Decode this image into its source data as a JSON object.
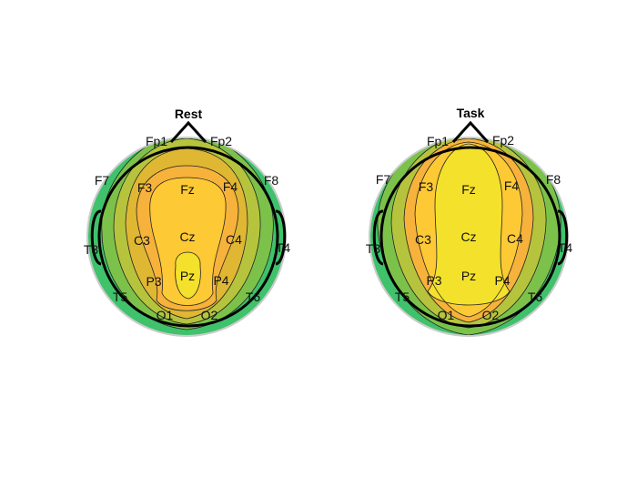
{
  "colors": {
    "rim": "#cccccc",
    "outline": "#000000",
    "levels": [
      "#3fc26b",
      "#7cc24a",
      "#b6c43d",
      "#e0b733",
      "#f7b23c",
      "#fdc934",
      "#f4e12b"
    ]
  },
  "figure": {
    "panels": [
      {
        "title": "Rest",
        "type": "topographic-map",
        "electrodes": [
          "Fp1",
          "Fp2",
          "F7",
          "F3",
          "Fz",
          "F4",
          "F8",
          "T3",
          "C3",
          "Cz",
          "C4",
          "T4",
          "T5",
          "P3",
          "Pz",
          "P4",
          "T6",
          "O1",
          "O2"
        ]
      },
      {
        "title": "Task",
        "type": "topographic-map",
        "electrodes": [
          "Fp1",
          "Fp2",
          "F7",
          "F3",
          "Fz",
          "F4",
          "F8",
          "T3",
          "C3",
          "Cz",
          "C4",
          "T4",
          "T5",
          "P3",
          "Pz",
          "P4",
          "T6",
          "O1",
          "O2"
        ]
      }
    ]
  }
}
